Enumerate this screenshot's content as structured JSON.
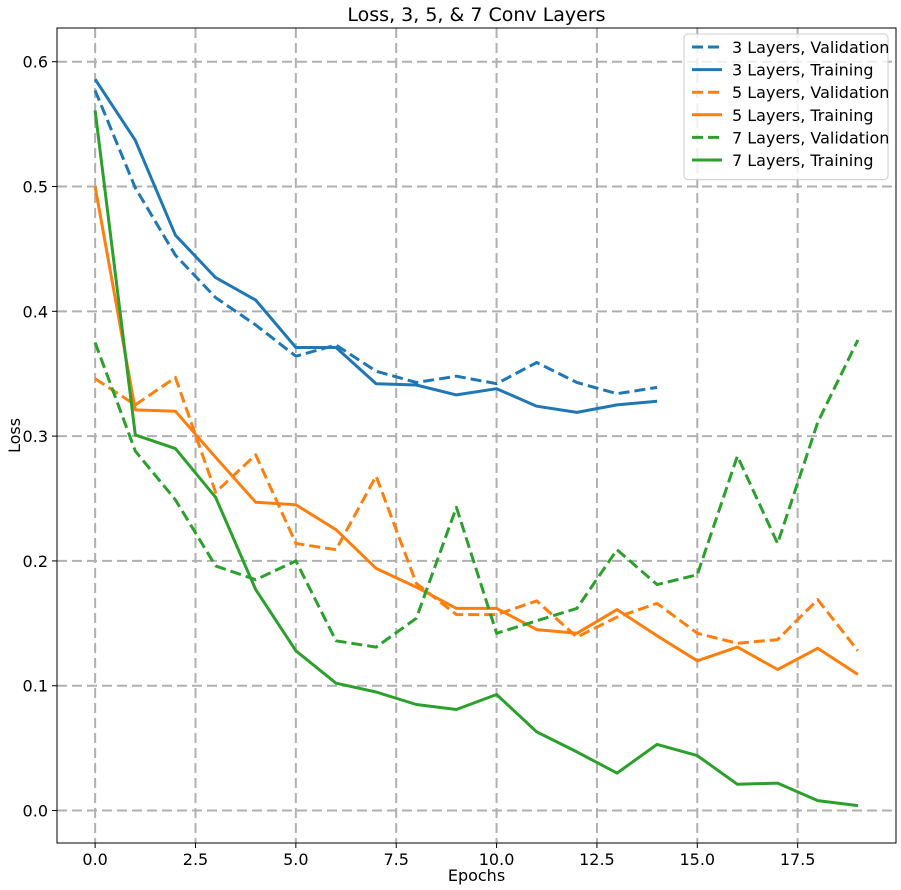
{
  "chart_data": {
    "type": "line",
    "title": "Loss, 3, 5, & 7 Conv Layers",
    "xlabel": "Epochs",
    "ylabel": "Loss",
    "xlim": [
      -0.95,
      19.95
    ],
    "ylim": [
      -0.026,
      0.627
    ],
    "xticks": [
      0,
      2.5,
      5,
      7.5,
      10,
      12.5,
      15,
      17.5
    ],
    "xtick_labels": [
      "0.0",
      "2.5",
      "5.0",
      "7.5",
      "10.0",
      "12.5",
      "15.0",
      "17.5"
    ],
    "yticks": [
      0,
      0.1,
      0.2,
      0.3,
      0.4,
      0.5,
      0.6
    ],
    "ytick_labels": [
      "0.0",
      "0.1",
      "0.2",
      "0.3",
      "0.4",
      "0.5",
      "0.6"
    ],
    "grid": true,
    "legend_position": "top-right",
    "series": [
      {
        "name": "3 Layers, Validation",
        "color": "#1f77b4",
        "style": "dashed",
        "x": [
          0,
          1,
          2,
          3,
          4,
          5,
          6,
          7,
          8,
          9,
          10,
          11,
          12,
          13,
          14
        ],
        "values": [
          0.577,
          0.499,
          0.445,
          0.411,
          0.389,
          0.364,
          0.373,
          0.352,
          0.343,
          0.348,
          0.342,
          0.359,
          0.343,
          0.334,
          0.339
        ]
      },
      {
        "name": "3 Layers, Training",
        "color": "#1f77b4",
        "style": "solid",
        "x": [
          0,
          1,
          2,
          3,
          4,
          5,
          6,
          7,
          8,
          9,
          10,
          11,
          12,
          13,
          14
        ],
        "values": [
          0.586,
          0.537,
          0.461,
          0.427,
          0.409,
          0.371,
          0.371,
          0.342,
          0.341,
          0.333,
          0.338,
          0.324,
          0.319,
          0.325,
          0.328
        ]
      },
      {
        "name": "5 Layers, Validation",
        "color": "#ff7f0e",
        "style": "dashed",
        "x": [
          0,
          1,
          2,
          3,
          4,
          5,
          6,
          7,
          8,
          9,
          10,
          11,
          12,
          13,
          14,
          15,
          16,
          17,
          18,
          19
        ],
        "values": [
          0.346,
          0.325,
          0.347,
          0.255,
          0.285,
          0.214,
          0.209,
          0.268,
          0.182,
          0.157,
          0.157,
          0.168,
          0.139,
          0.155,
          0.166,
          0.142,
          0.134,
          0.137,
          0.169,
          0.128
        ]
      },
      {
        "name": "5 Layers, Training",
        "color": "#ff7f0e",
        "style": "solid",
        "x": [
          0,
          1,
          2,
          3,
          4,
          5,
          6,
          7,
          8,
          9,
          10,
          11,
          12,
          13,
          14,
          15,
          16,
          17,
          18,
          19
        ],
        "values": [
          0.5,
          0.321,
          0.32,
          0.283,
          0.247,
          0.245,
          0.225,
          0.194,
          0.179,
          0.162,
          0.162,
          0.145,
          0.142,
          0.161,
          0.14,
          0.12,
          0.131,
          0.113,
          0.13,
          0.109
        ]
      },
      {
        "name": "7 Layers, Validation",
        "color": "#2ca02c",
        "style": "dashed",
        "x": [
          0,
          1,
          2,
          3,
          4,
          5,
          6,
          7,
          8,
          9,
          10,
          11,
          12,
          13,
          14,
          15,
          16,
          17,
          18,
          19
        ],
        "values": [
          0.375,
          0.288,
          0.249,
          0.196,
          0.185,
          0.2,
          0.136,
          0.131,
          0.154,
          0.243,
          0.142,
          0.152,
          0.162,
          0.209,
          0.181,
          0.189,
          0.284,
          0.214,
          0.311,
          0.377
        ]
      },
      {
        "name": "7 Layers, Training",
        "color": "#2ca02c",
        "style": "solid",
        "x": [
          0,
          1,
          2,
          3,
          4,
          5,
          6,
          7,
          8,
          9,
          10,
          11,
          12,
          13,
          14,
          15,
          16,
          17,
          18,
          19
        ],
        "values": [
          0.561,
          0.301,
          0.29,
          0.251,
          0.177,
          0.128,
          0.102,
          0.095,
          0.085,
          0.081,
          0.093,
          0.063,
          0.047,
          0.03,
          0.053,
          0.044,
          0.021,
          0.022,
          0.008,
          0.004
        ]
      }
    ]
  }
}
